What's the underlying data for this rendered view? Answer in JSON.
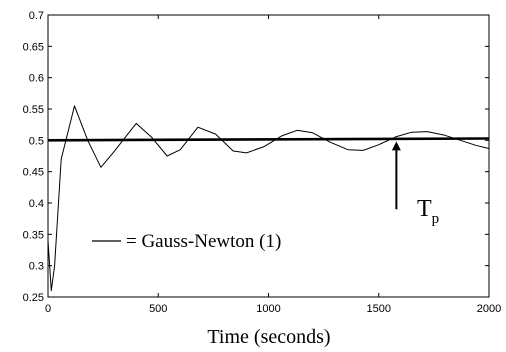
{
  "chart_data": {
    "type": "line",
    "title": "",
    "xlabel": "Time (seconds)",
    "ylabel": "",
    "xlim": [
      0,
      2000
    ],
    "ylim": [
      0.25,
      0.7
    ],
    "x_ticks": [
      "0",
      "500",
      "1000",
      "1500",
      "2000"
    ],
    "y_ticks": [
      "0.25",
      "0.3",
      "0.35",
      "0.4",
      "0.45",
      "0.5",
      "0.55",
      "0.6",
      "0.65",
      "0.7"
    ],
    "grid": false,
    "annotation_text": "= Gauss-Newton (1)",
    "tp_label": {
      "main": "T",
      "sub": "p"
    },
    "tp_arrow": {
      "x": 1580,
      "y_from": 0.39,
      "y_to": 0.5
    },
    "series": [
      {
        "style": "thin",
        "color": "#000000",
        "x": [
          0,
          0,
          15,
          30,
          60,
          120,
          180,
          240,
          300,
          400,
          470,
          540,
          600,
          680,
          760,
          840,
          900,
          980,
          1060,
          1130,
          1200,
          1280,
          1360,
          1430,
          1500,
          1580,
          1650,
          1720,
          1800,
          1870,
          1940,
          2000
        ],
        "y": [
          0.5,
          0.34,
          0.26,
          0.3,
          0.47,
          0.555,
          0.5,
          0.457,
          0.482,
          0.527,
          0.505,
          0.475,
          0.485,
          0.521,
          0.51,
          0.483,
          0.48,
          0.49,
          0.507,
          0.516,
          0.512,
          0.497,
          0.485,
          0.484,
          0.493,
          0.506,
          0.513,
          0.514,
          0.508,
          0.5,
          0.492,
          0.487
        ]
      },
      {
        "style": "thick",
        "color": "#000000",
        "x": [
          0,
          2000
        ],
        "y": [
          0.5,
          0.503
        ]
      }
    ]
  }
}
